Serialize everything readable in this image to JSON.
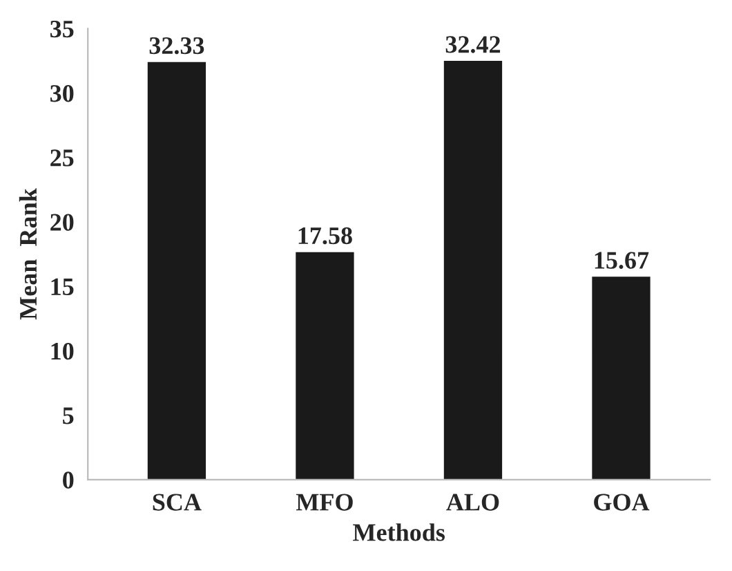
{
  "chart_data": {
    "type": "bar",
    "xlabel": "Methods",
    "ylabel": "Mean  Rank",
    "categories": [
      "SCA",
      "MFO",
      "ALO",
      "GOA"
    ],
    "values": [
      32.33,
      17.58,
      32.42,
      15.67
    ],
    "color": "#1a1a1a",
    "ylim": [
      0,
      35
    ],
    "yticks": [
      0,
      5,
      10,
      15,
      20,
      25,
      30,
      35
    ],
    "data_labels": true
  }
}
